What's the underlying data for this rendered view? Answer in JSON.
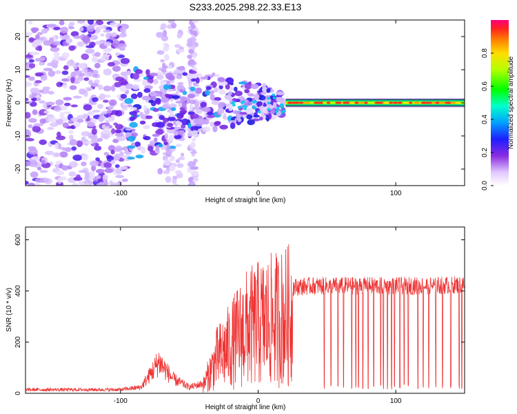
{
  "title": "S233.2025.298.22.33.E13",
  "chart_data": [
    {
      "type": "heatmap",
      "xlabel": "Height of straight line (km)",
      "ylabel": "Frequency (Hz)",
      "xlim": [
        -169,
        150
      ],
      "ylim": [
        -25,
        25
      ],
      "xticks": [
        -100,
        0,
        100
      ],
      "yticks": [
        -20,
        -10,
        0,
        10,
        20
      ],
      "colorbar": {
        "label": "Normalized spectral amplitude",
        "range": [
          0.0,
          1.0
        ],
        "ticks": [
          0.0,
          0.2,
          0.4,
          0.6,
          0.8
        ]
      },
      "description_regions": [
        {
          "x_range": [
            -169,
            -95
          ],
          "freq_range": [
            -25,
            25
          ],
          "amplitude": 0.05
        },
        {
          "x_range": [
            -95,
            20
          ],
          "freq_range": [
            -10,
            10
          ],
          "amplitude": 0.15
        },
        {
          "x_range": [
            20,
            150
          ],
          "freq_range": [
            -1,
            1
          ],
          "amplitude": 0.9
        }
      ]
    },
    {
      "type": "line",
      "xlabel": "Height of straight line (km)",
      "ylabel": "SNR (10 * v/v)",
      "xlim": [
        -169,
        150
      ],
      "ylim": [
        0,
        650
      ],
      "xticks": [
        -100,
        0,
        100
      ],
      "yticks": [
        0,
        200,
        400,
        600
      ],
      "color": "#ee3333",
      "envelope": {
        "x": [
          -169,
          -100,
          -85,
          -72,
          -62,
          -50,
          -40,
          -30,
          -20,
          -10,
          0,
          10,
          20,
          25,
          40,
          60,
          80,
          100,
          120,
          150
        ],
        "y": [
          15,
          15,
          25,
          130,
          60,
          25,
          40,
          180,
          250,
          330,
          360,
          380,
          400,
          415,
          420,
          420,
          420,
          420,
          420,
          425
        ]
      },
      "dropouts_x": [
        48,
        53,
        58,
        62,
        68,
        71,
        73,
        76,
        80,
        84,
        89,
        91,
        94,
        97,
        99,
        103,
        106,
        109,
        116,
        120,
        124,
        129,
        134,
        140,
        146,
        148
      ]
    }
  ]
}
